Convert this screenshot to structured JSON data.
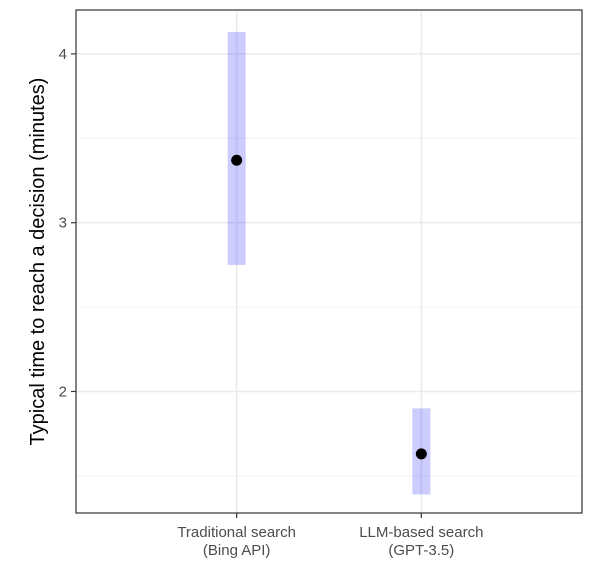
{
  "chart_data": {
    "type": "scatter",
    "title": "",
    "xlabel": "",
    "ylabel": "Typical time to reach a decision (minutes)",
    "categories": [
      {
        "line1": "Traditional search",
        "line2": "(Bing API)"
      },
      {
        "line1": "LLM-based search",
        "line2": "(GPT-3.5)"
      }
    ],
    "points": [
      {
        "category": "Traditional search (Bing API)",
        "estimate": 3.37,
        "lower": 2.75,
        "upper": 4.13
      },
      {
        "category": "LLM-based search (GPT-3.5)",
        "estimate": 1.63,
        "lower": 1.39,
        "upper": 1.9
      }
    ],
    "ylim": [
      1.28,
      4.26
    ],
    "y_ticks": [
      2,
      3,
      4
    ],
    "y_tick_labels": [
      "2",
      "3",
      "4"
    ],
    "y_minor_ticks": [
      1.5,
      2.5,
      3.5
    ],
    "grid": true,
    "colors": {
      "interval": "#0000ff",
      "interval_opacity": 0.2,
      "point": "#000000",
      "panel_border": "#333333",
      "grid_major": "#ebebeb",
      "grid_minor": "#f3f3f3"
    }
  }
}
